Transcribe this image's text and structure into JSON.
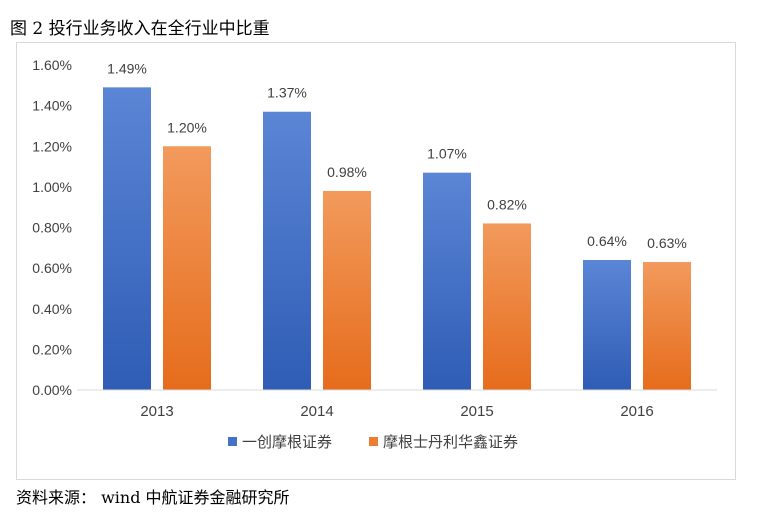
{
  "figure": {
    "title": "图 2 投行业务收入在全行业中比重",
    "source": "资料来源： wind 中航证券金融研究所"
  },
  "chart_data": {
    "type": "bar",
    "categories": [
      "2013",
      "2014",
      "2015",
      "2016"
    ],
    "series": [
      {
        "name": "一创摩根证券",
        "values": [
          1.49,
          1.37,
          1.07,
          0.64
        ],
        "labels": [
          "1.49%",
          "1.37%",
          "1.07%",
          "0.64%"
        ],
        "color": "#4472c4"
      },
      {
        "name": "摩根士丹利华鑫证券",
        "values": [
          1.2,
          0.98,
          0.82,
          0.63
        ],
        "labels": [
          "1.20%",
          "0.98%",
          "0.82%",
          "0.63%"
        ],
        "color": "#ed7d31"
      }
    ],
    "yticks": [
      "0.00%",
      "0.20%",
      "0.40%",
      "0.60%",
      "0.80%",
      "1.00%",
      "1.20%",
      "1.40%",
      "1.60%"
    ],
    "ylim": [
      0,
      1.6
    ],
    "title": "",
    "xlabel": "",
    "ylabel": "",
    "legend_position": "bottom"
  }
}
